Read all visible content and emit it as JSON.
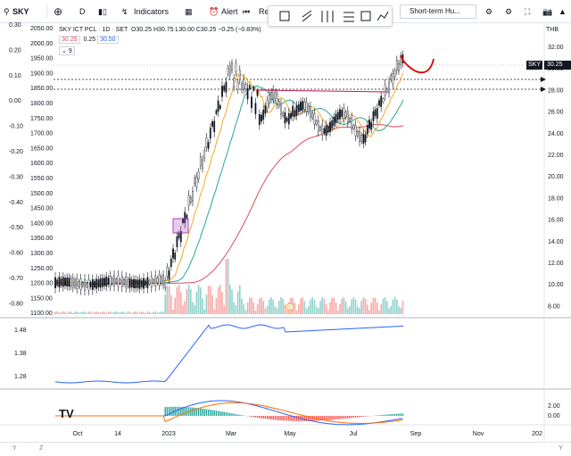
{
  "toolbar": {
    "symbol": "SKY",
    "interval": "D",
    "indicators": "Indicators",
    "alert": "Alert",
    "replay_partial": "Re",
    "short_term": "Short-term Hu..."
  },
  "legend": {
    "title": "SKY ICT PCL · 1D · SET",
    "ohlc": "O30.25 H30.75 L30.00 C30.25 −0.25 (−0.83%)",
    "bid": "30.25",
    "spread": "0.25",
    "ask": "30.50",
    "collapsed_count": "9"
  },
  "currency": "THB",
  "price_badge": {
    "symbol": "SKY",
    "value": "30.25"
  },
  "right_axis_ticks": [
    "32.00",
    "30.00",
    "28.00",
    "26.00",
    "24.00",
    "22.00",
    "20.00",
    "18.00",
    "16.00",
    "14.00",
    "12.00",
    "10.00",
    "8.00"
  ],
  "left_axis_outer": [
    "0.30",
    "0.20",
    "0.10",
    "0.00",
    "-0.10",
    "-0.20",
    "-0.30",
    "-0.40",
    "-0.50",
    "-0.60",
    "-0.70",
    "-0.80"
  ],
  "left_axis_inner": [
    "2050.00",
    "2000.00",
    "1950.00",
    "1900.00",
    "1850.00",
    "1800.00",
    "1750.00",
    "1700.00",
    "1650.00",
    "1600.00",
    "1550.00",
    "1500.00",
    "1450.00",
    "1400.00",
    "1350.00",
    "1300.00",
    "1250.00",
    "1200.00",
    "1150.00",
    "1100.00"
  ],
  "ratio_panel_ticks": [
    "1.48",
    "1.38",
    "1.28"
  ],
  "macd_panel_ticks": [
    "2.00",
    "0.00"
  ],
  "time_axis": [
    "Oct",
    "14",
    "2023",
    "Mar",
    "May",
    "Jul",
    "Sep",
    "Nov",
    "202"
  ],
  "bottom_bar": {
    "left": "Y",
    "left2": "Z",
    "right": "Y"
  },
  "colors": {
    "candle": "#131722",
    "ema_fast": "#f5a623",
    "ema_mid": "#26a69a",
    "ema_slow": "#e04a5a",
    "ratio_line": "#2962ff",
    "macd": "#2962ff",
    "signal": "#ff6d00",
    "annotation_red": "#e00000",
    "box_purple": "#9c27b0",
    "hline_pink": "#c2185b"
  }
}
